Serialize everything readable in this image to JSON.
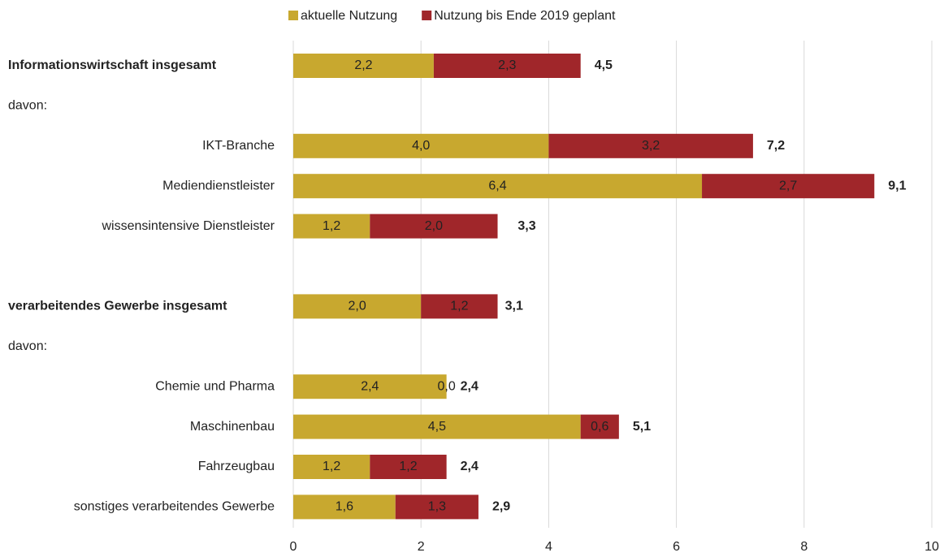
{
  "chart_data": {
    "type": "stacked-barh",
    "categories": [
      "Informationswirtschaft insgesamt",
      "davon:",
      "IKT-Branche",
      "Mediendienstleister",
      "wissensintensive Dienstleister",
      null,
      "verarbeitendes Gewerbe insgesamt",
      "davon:",
      "Chemie und Pharma",
      "Maschinenbau",
      "Fahrzeugbau",
      "sonstiges verarbeitendes Gewerbe"
    ],
    "bold_rows": [
      0,
      6
    ],
    "series": [
      {
        "name": "aktuelle Nutzung",
        "color": "#c8a82f",
        "label_color": "#333333",
        "values": [
          2.2,
          null,
          4.0,
          6.4,
          1.2,
          null,
          2.0,
          null,
          2.4,
          4.5,
          1.2,
          1.6
        ],
        "value_labels": [
          "2,2",
          null,
          "4,0",
          "6,4",
          "1,2",
          null,
          "2,0",
          null,
          "2,4",
          "4,5",
          "1,2",
          "1,6"
        ]
      },
      {
        "name": "Nutzung bis Ende 2019 geplant",
        "color": "#a0262a",
        "label_color": "#ffffff",
        "values": [
          2.3,
          null,
          3.2,
          2.7,
          2.0,
          null,
          1.2,
          null,
          0.0,
          0.6,
          1.2,
          1.3
        ],
        "value_labels": [
          "2,3",
          null,
          "3,2",
          "2,7",
          "2,0",
          null,
          "1,2",
          null,
          "0,0",
          "0,6",
          "1,2",
          "1,3"
        ]
      }
    ],
    "totals": [
      4.5,
      null,
      7.2,
      9.1,
      3.3,
      null,
      3.1,
      null,
      2.4,
      5.1,
      2.4,
      2.9
    ],
    "total_labels": [
      "4,5",
      null,
      "7,2",
      "9,1",
      "3,3",
      null,
      "3,1",
      null,
      "2,4",
      "5,1",
      "2,4",
      "2,9"
    ],
    "xlim": [
      0,
      10
    ],
    "xticks": [
      0,
      2,
      4,
      6,
      8,
      10
    ],
    "grid": true,
    "legend": "top"
  }
}
